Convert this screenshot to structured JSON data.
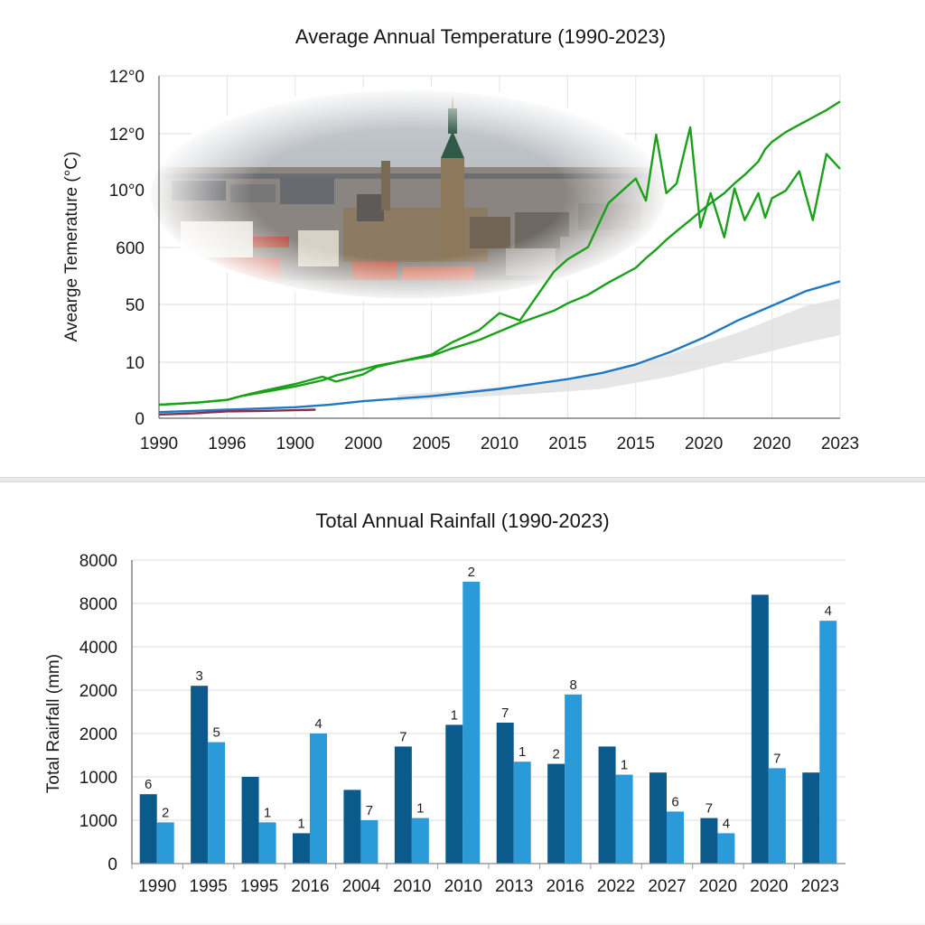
{
  "chart_data": [
    {
      "type": "line",
      "title": "Average Annual Temperature (1990-2023)",
      "xlabel": "",
      "ylabel": "Avearge Temerature (°C)",
      "x_tick_labels": [
        "1990",
        "1996",
        "1900",
        "2000",
        "2005",
        "2010",
        "2015",
        "2015",
        "2020",
        "2020",
        "2023"
      ],
      "y_tick_labels": [
        "0",
        "10",
        "50",
        "600",
        "10°0",
        "12°0",
        "12°0"
      ],
      "grid": true,
      "series": [
        {
          "color": "#1aa01a",
          "x": [
            0,
            0.3,
            0.6,
            1.0,
            1.2,
            1.5,
            2.0,
            2.4,
            2.6,
            3.0,
            3.2,
            3.5,
            4.0,
            4.3,
            4.7,
            5.0,
            5.3,
            5.8,
            6.0,
            6.3,
            6.6,
            7.0,
            7.15,
            7.3,
            7.45,
            7.6,
            7.8,
            7.95,
            8.1,
            8.3,
            8.45,
            8.6,
            8.8,
            8.9,
            9.0,
            9.2,
            9.4,
            9.6,
            9.8,
            10.0
          ],
          "values": [
            0.55,
            0.6,
            0.65,
            0.75,
            0.9,
            1.1,
            1.4,
            1.7,
            1.5,
            1.8,
            2.1,
            2.3,
            2.6,
            3.1,
            3.6,
            4.3,
            4.0,
            6.0,
            6.5,
            7.0,
            8.8,
            9.8,
            8.9,
            11.6,
            9.2,
            9.6,
            11.9,
            7.8,
            9.2,
            7.4,
            9.4,
            8.1,
            9.2,
            8.2,
            9.0,
            9.3,
            10.1,
            8.1,
            10.8,
            10.2
          ],
          "trend_values": [
            0.55,
            0.6,
            0.65,
            0.75,
            0.9,
            1.05,
            1.3,
            1.55,
            1.75,
            2.0,
            2.15,
            2.3,
            2.55,
            2.85,
            3.2,
            3.55,
            3.9,
            4.4,
            4.7,
            5.05,
            5.55,
            6.15,
            6.55,
            6.9,
            7.3,
            7.65,
            8.1,
            8.45,
            8.8,
            9.2,
            9.6,
            9.95,
            10.5,
            11.0,
            11.3,
            11.7,
            12.0,
            12.3,
            12.6,
            12.95
          ]
        },
        {
          "color": "#1f78c1",
          "x": [
            0,
            0.5,
            1.0,
            1.5,
            2.0,
            2.5,
            3.0,
            3.5,
            4.0,
            4.5,
            5.0,
            5.5,
            6.0,
            6.5,
            7.0,
            7.5,
            8.0,
            8.5,
            9.0,
            9.5,
            10.0
          ],
          "values": [
            0.25,
            0.3,
            0.35,
            0.4,
            0.45,
            0.55,
            0.7,
            0.8,
            0.9,
            1.05,
            1.2,
            1.4,
            1.6,
            1.85,
            2.2,
            2.7,
            3.3,
            4.0,
            4.6,
            5.2,
            5.6
          ]
        },
        {
          "color": "#8a2d4a",
          "x": [
            0,
            0.5,
            1.0,
            1.5,
            2.0,
            2.3
          ],
          "values": [
            0.15,
            0.2,
            0.28,
            0.3,
            0.33,
            0.35
          ]
        }
      ],
      "band": {
        "color": "#e2e2e2",
        "x": [
          3.5,
          4.5,
          5.5,
          6.5,
          7.5,
          8.5,
          9.5,
          10.0
        ],
        "upper": [
          0.95,
          1.15,
          1.4,
          1.85,
          2.6,
          3.5,
          4.6,
          4.9
        ],
        "lower": [
          0.7,
          0.85,
          1.0,
          1.2,
          1.7,
          2.4,
          3.1,
          3.4
        ]
      }
    },
    {
      "type": "bar",
      "title": "Total Annual Rainfall (1990-2023)",
      "xlabel": "",
      "ylabel": "Total Rairfall (mm)",
      "categories": [
        "1990",
        "1995",
        "1995",
        "2016",
        "2004",
        "2010",
        "2010",
        "2013",
        "2016",
        "2022",
        "2027",
        "2020",
        "2020",
        "2023"
      ],
      "y_tick_labels": [
        "0",
        "1000",
        "1000",
        "2000",
        "2000",
        "4000",
        "8000",
        "8000"
      ],
      "grid": true,
      "series": [
        {
          "color": "#0b5a8c",
          "values": [
            1.6,
            4.1,
            2.0,
            0.7,
            1.7,
            2.7,
            3.2,
            3.25,
            2.3,
            2.7,
            2.1,
            1.05,
            6.2,
            2.1
          ],
          "labels": [
            "6",
            "3",
            "",
            "1",
            "",
            "7",
            "1",
            "7",
            "2",
            "",
            "",
            "7",
            "",
            ""
          ]
        },
        {
          "color": "#2a9ad8",
          "values": [
            0.95,
            2.8,
            0.95,
            3.0,
            1.0,
            1.05,
            6.5,
            2.35,
            3.9,
            2.05,
            1.2,
            0.7,
            2.2,
            5.6
          ],
          "labels": [
            "2",
            "5",
            "1",
            "4",
            "7",
            "1",
            "2",
            "1",
            "8",
            "1",
            "6",
            "4",
            "7",
            "4"
          ]
        }
      ]
    }
  ]
}
